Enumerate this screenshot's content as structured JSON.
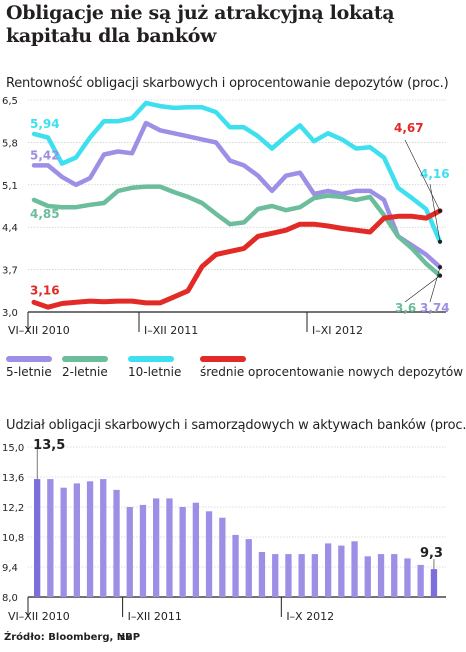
{
  "header": {
    "title": "Obligacje nie są już atrakcyjną lokatą kapitału dla banków"
  },
  "chart_data": [
    {
      "type": "line",
      "subtitle": "Rentowność obligacji skarbowych i oprocentowanie depozytów (proc.)",
      "ylim": [
        3.0,
        6.5
      ],
      "yticks": [
        "6,5",
        "5,8",
        "5,1",
        "4,4",
        "3,7",
        "3,0"
      ],
      "period_labels": [
        "VI–XII 2010",
        "I–XII 2011",
        "I–XI 2012"
      ],
      "n_points": 30,
      "series": [
        {
          "name": "5-letnie",
          "color": "#9d8fe6",
          "values": [
            5.42,
            5.42,
            5.23,
            5.1,
            5.21,
            5.6,
            5.65,
            5.62,
            6.12,
            6.0,
            5.95,
            5.9,
            5.85,
            5.8,
            5.5,
            5.42,
            5.25,
            5.0,
            5.25,
            5.3,
            4.95,
            5.0,
            4.95,
            5.0,
            5.0,
            4.85,
            4.25,
            4.1,
            3.95,
            3.74
          ],
          "start_label": "5,42",
          "end_label": "3,74"
        },
        {
          "name": "2-letnie",
          "color": "#6bbd9b",
          "values": [
            4.85,
            4.75,
            4.73,
            4.73,
            4.77,
            4.8,
            5.0,
            5.05,
            5.07,
            5.07,
            4.98,
            4.9,
            4.8,
            4.62,
            4.45,
            4.48,
            4.7,
            4.75,
            4.68,
            4.73,
            4.88,
            4.92,
            4.9,
            4.85,
            4.9,
            4.6,
            4.25,
            4.05,
            3.8,
            3.6
          ],
          "start_label": "4,85",
          "end_label": "3,6"
        },
        {
          "name": "10-letnie",
          "color": "#3ee0f0",
          "values": [
            5.94,
            5.88,
            5.45,
            5.55,
            5.88,
            6.15,
            6.15,
            6.2,
            6.45,
            6.4,
            6.37,
            6.38,
            6.38,
            6.3,
            6.05,
            6.05,
            5.9,
            5.7,
            5.9,
            6.08,
            5.82,
            5.95,
            5.85,
            5.7,
            5.72,
            5.55,
            5.05,
            4.88,
            4.7,
            4.16
          ],
          "start_label": "5,94",
          "end_label": "4,16"
        },
        {
          "name": "średnie oprocentowanie nowych depozytów",
          "color": "#e22a26",
          "values": [
            3.16,
            3.08,
            3.14,
            3.16,
            3.18,
            3.17,
            3.18,
            3.18,
            3.15,
            3.15,
            3.25,
            3.35,
            3.75,
            3.95,
            4.0,
            4.05,
            4.25,
            4.3,
            4.35,
            4.45,
            4.45,
            4.42,
            4.38,
            4.35,
            4.32,
            4.55,
            4.58,
            4.58,
            4.55,
            4.67
          ],
          "start_label": "3,16",
          "end_label": "4,67"
        }
      ]
    },
    {
      "type": "bar",
      "subtitle": "Udział obligacji skarbowych i samorządowych w aktywach banków (proc.)",
      "ylim": [
        8.0,
        15.0
      ],
      "yticks": [
        "15,0",
        "13,6",
        "12,2",
        "10,8",
        "9,4",
        "8,0"
      ],
      "period_labels": [
        "VI–XII 2010",
        "I–XII 2011",
        "I–X 2012"
      ],
      "color": "#9d8fe6",
      "highlight_color": "#7c6edb",
      "values": [
        13.5,
        13.5,
        13.1,
        13.3,
        13.4,
        13.5,
        13.0,
        12.2,
        12.3,
        12.6,
        12.6,
        12.2,
        12.4,
        12.0,
        11.7,
        10.9,
        10.7,
        10.1,
        10.0,
        10.0,
        10.0,
        10.0,
        10.5,
        10.4,
        10.6,
        9.9,
        10.0,
        10.0,
        9.8,
        9.5,
        9.3
      ],
      "start_label": "13,5",
      "end_label": "9,3"
    }
  ],
  "footer": {
    "source": "Źródło: Bloomberg, NBP",
    "author": "RM"
  }
}
